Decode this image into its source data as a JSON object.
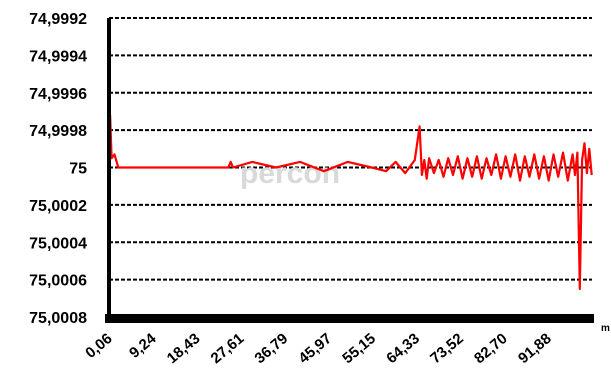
{
  "chart_data": {
    "type": "line",
    "title": "",
    "xlabel": "",
    "x_unit": "m",
    "ylabel": "",
    "y_axis_inverted": true,
    "ylim": [
      74.9992,
      75.0008
    ],
    "y_ticks": [
      "74,9992",
      "74,9994",
      "74,9996",
      "74,9998",
      "75",
      "75,0002",
      "75,0004",
      "75,0006",
      "75,0008"
    ],
    "y_tick_values": [
      74.9992,
      74.9994,
      74.9996,
      74.9998,
      75.0,
      75.0002,
      75.0004,
      75.0006,
      75.0008
    ],
    "xlim": [
      0.06,
      101.06
    ],
    "x_ticks": [
      "0,06",
      "9,24",
      "18,43",
      "27,61",
      "36,79",
      "45,97",
      "55,15",
      "64,33",
      "73,52",
      "82,70",
      "91,88"
    ],
    "x_tick_values": [
      0.06,
      9.24,
      18.43,
      27.61,
      36.79,
      45.97,
      55.15,
      64.33,
      73.52,
      82.7,
      91.88
    ],
    "grid": true,
    "legend": "none",
    "watermark": "percon",
    "series": [
      {
        "color": "#ff0000",
        "x": [
          0.06,
          0.3,
          0.6,
          1.2,
          2.0,
          5.0,
          10.0,
          20.0,
          25.0,
          25.5,
          26.0,
          30.0,
          35.0,
          40.0,
          45.0,
          50.0,
          55.0,
          58.0,
          60.0,
          62.0,
          64.0,
          65.0,
          65.5,
          66.0,
          66.5,
          67.0,
          68.0,
          69.0,
          70.0,
          71.0,
          72.0,
          73.0,
          74.0,
          75.0,
          76.0,
          77.0,
          78.0,
          79.0,
          80.0,
          81.0,
          82.0,
          83.0,
          84.0,
          85.0,
          86.0,
          87.0,
          88.0,
          89.0,
          90.0,
          91.0,
          92.0,
          93.0,
          94.0,
          95.0,
          96.0,
          97.0,
          97.5,
          98.0,
          98.5,
          99.0,
          99.5,
          100.0,
          100.5,
          101.0
        ],
        "y": [
          75.0,
          74.99972,
          74.99995,
          74.99993,
          75.0,
          75.0,
          75.0,
          75.0,
          75.0,
          74.99997,
          75.0,
          74.99997,
          75.0,
          74.99997,
          75.00002,
          74.99997,
          75.0,
          75.00002,
          74.99997,
          75.00003,
          74.99996,
          74.99978,
          75.00004,
          74.99996,
          75.00006,
          74.99995,
          75.00003,
          74.99996,
          75.00005,
          74.99995,
          75.00004,
          74.99994,
          75.00006,
          74.99995,
          75.00005,
          74.99994,
          75.00006,
          74.99995,
          75.00004,
          74.99993,
          75.00006,
          74.99994,
          75.00005,
          74.99993,
          75.00007,
          74.99994,
          75.00005,
          74.99993,
          75.00006,
          74.99994,
          75.00007,
          74.99993,
          75.00005,
          74.99992,
          75.00007,
          74.99993,
          75.00004,
          74.99992,
          75.00065,
          74.99996,
          74.99987,
          75.00003,
          74.9999,
          75.00004
        ]
      }
    ]
  }
}
